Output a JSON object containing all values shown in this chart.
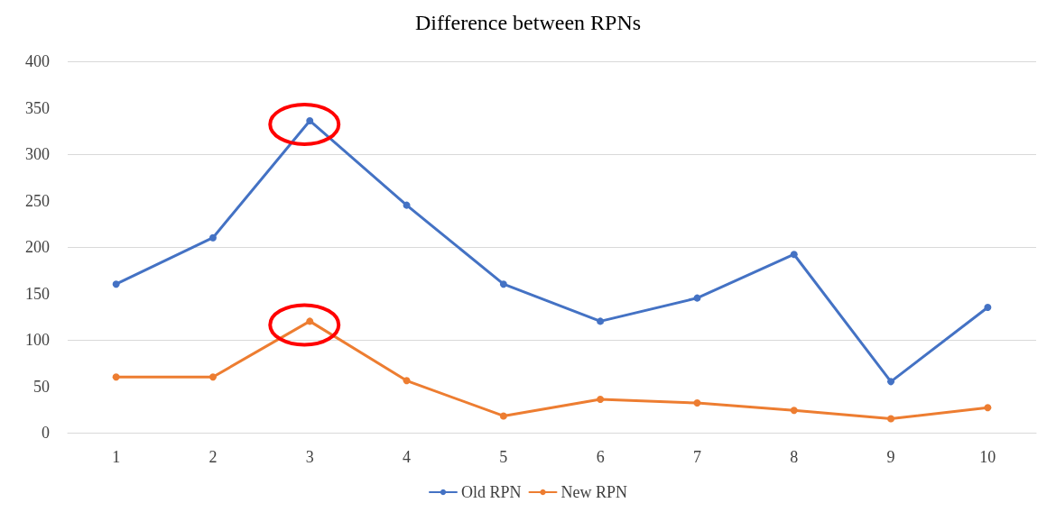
{
  "chart_data": {
    "type": "line",
    "title": "Difference between RPNs",
    "categories": [
      "1",
      "2",
      "3",
      "4",
      "5",
      "6",
      "7",
      "8",
      "9",
      "10"
    ],
    "series": [
      {
        "name": "Old RPN",
        "color": "#4472c4",
        "values": [
          160,
          210,
          336,
          245,
          160,
          120,
          145,
          192,
          55,
          135
        ]
      },
      {
        "name": "New RPN",
        "color": "#ed7d31",
        "values": [
          60,
          60,
          120,
          56,
          18,
          36,
          32,
          24,
          15,
          27
        ]
      }
    ],
    "ylim": [
      0,
      400
    ],
    "yticks": [
      0,
      50,
      100,
      150,
      200,
      250,
      300,
      350,
      400
    ],
    "grid": "y",
    "legend": "bottom",
    "marker": "circle",
    "line_style": "solid"
  }
}
